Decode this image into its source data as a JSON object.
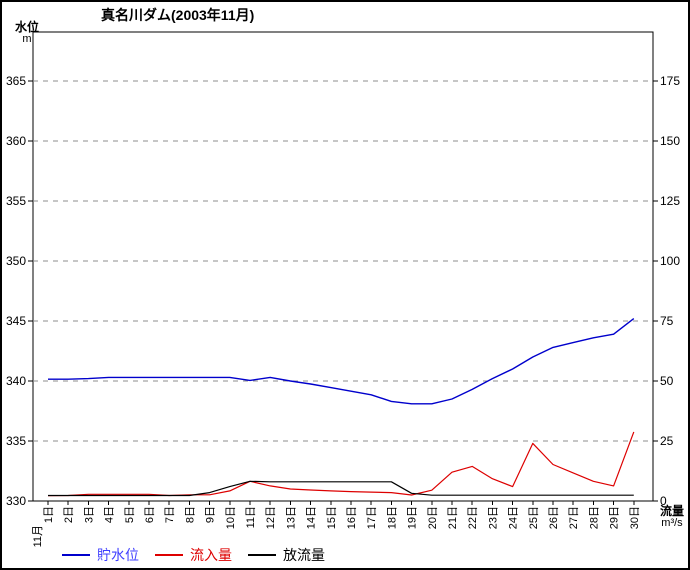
{
  "title": "真名川ダム(2003年11月)",
  "axes": {
    "left": {
      "label": "水位",
      "unit": "m",
      "ticks": [
        365,
        360,
        355,
        350,
        345,
        340,
        335,
        330
      ]
    },
    "right": {
      "label": "流量",
      "unit": "m³/s",
      "ticks": [
        175,
        150,
        125,
        100,
        75,
        50,
        25,
        0
      ]
    },
    "x": {
      "month_label": "11月"
    }
  },
  "legend": [
    {
      "label": "貯水位",
      "color": "#0000cc",
      "text_color": "#4040ff"
    },
    {
      "label": "流入量",
      "color": "#dd0000",
      "text_color": "#dd0000"
    },
    {
      "label": "放流量",
      "color": "#000000",
      "text_color": "#000000"
    }
  ],
  "chart_data": {
    "type": "line",
    "title": "真名川ダム(2003年11月)",
    "x": [
      1,
      2,
      3,
      4,
      5,
      6,
      7,
      8,
      9,
      10,
      11,
      12,
      13,
      14,
      15,
      16,
      17,
      18,
      19,
      20,
      21,
      22,
      23,
      24,
      25,
      26,
      27,
      28,
      29,
      30
    ],
    "x_tick_labels": [
      "1日",
      "2日",
      "3日",
      "4日",
      "5日",
      "6日",
      "7日",
      "8日",
      "9日",
      "10日",
      "11日",
      "12日",
      "13日",
      "14日",
      "15日",
      "16日",
      "17日",
      "18日",
      "19日",
      "20日",
      "21日",
      "22日",
      "23日",
      "24日",
      "25日",
      "26日",
      "27日",
      "28日",
      "29日",
      "30日"
    ],
    "left_axis": {
      "label": "水位 (m)",
      "range": [
        330,
        369.1
      ],
      "gridlines": [
        335,
        340,
        345,
        350,
        355,
        360,
        365
      ]
    },
    "right_axis": {
      "label": "流量 (m³/s)",
      "range": [
        0,
        195.4
      ]
    },
    "grid": "dashed-horizontal",
    "legend_position": "bottom",
    "series": [
      {
        "name": "貯水位",
        "axis": "left",
        "color": "#0000cc",
        "values": [
          340.15,
          340.15,
          340.2,
          340.3,
          340.3,
          340.3,
          340.3,
          340.3,
          340.3,
          340.3,
          340.05,
          340.3,
          340.0,
          339.75,
          339.45,
          339.15,
          338.85,
          338.3,
          338.1,
          338.1,
          338.5,
          339.3,
          340.2,
          341.0,
          342.0,
          342.8,
          343.2,
          343.6,
          343.9,
          345.2
        ]
      },
      {
        "name": "流入量",
        "axis": "right",
        "color": "#dd0000",
        "values": [
          2.2,
          2.3,
          2.8,
          2.8,
          2.8,
          2.8,
          2.3,
          2.6,
          2.6,
          4.2,
          8.2,
          6.3,
          5.0,
          4.6,
          4.2,
          3.9,
          3.7,
          3.5,
          2.5,
          4.5,
          12.0,
          14.4,
          9.3,
          6.0,
          24.0,
          15.2,
          11.7,
          8.2,
          6.3,
          28.8
        ]
      },
      {
        "name": "放流量",
        "axis": "right",
        "color": "#000000",
        "values": [
          2.3,
          2.3,
          2.3,
          2.3,
          2.3,
          2.3,
          2.3,
          2.3,
          3.5,
          6.0,
          8.2,
          8.0,
          8.0,
          8.0,
          8.0,
          8.0,
          8.0,
          8.0,
          3.2,
          2.4,
          2.4,
          2.4,
          2.4,
          2.4,
          2.4,
          2.4,
          2.4,
          2.4,
          2.4,
          2.4
        ]
      }
    ]
  }
}
